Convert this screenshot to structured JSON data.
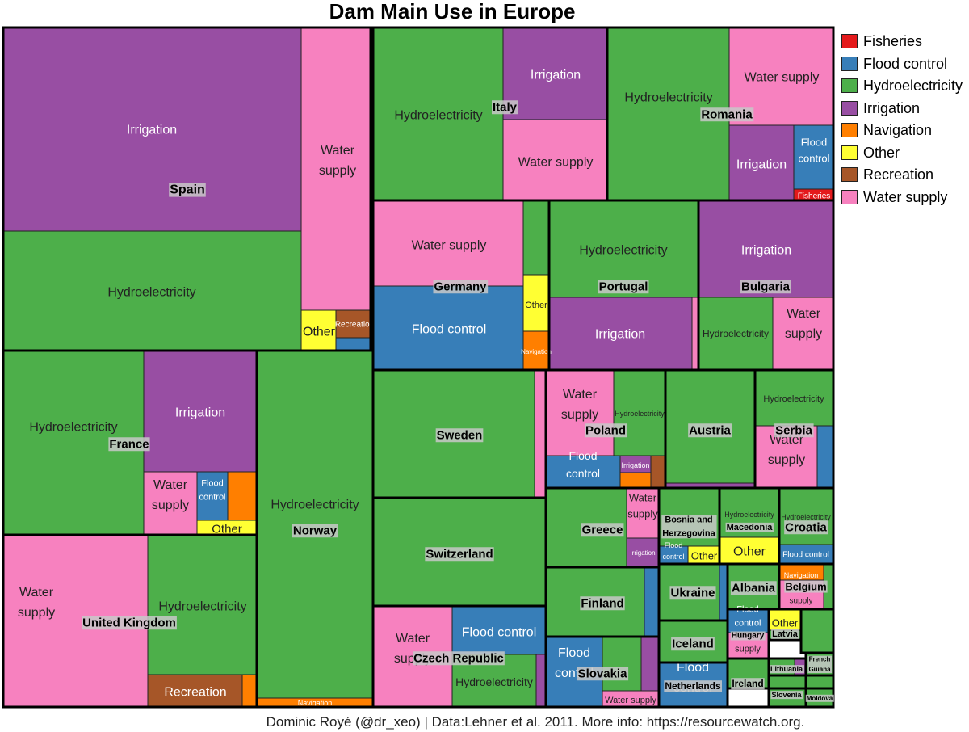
{
  "chart_data": {
    "type": "treemap",
    "title": "Dam Main Use in Europe",
    "caption": "Dominic Royé (@dr_xeo) | Data:Lehner et al. 2011. More info: https://resourcewatch.org.",
    "legend": {
      "position": "right",
      "entries": [
        {
          "label": "Fisheries",
          "color": "#e41a1c"
        },
        {
          "label": "Flood control",
          "color": "#377eb8"
        },
        {
          "label": "Hydroelectricity",
          "color": "#4daf4a"
        },
        {
          "label": "Irrigation",
          "color": "#984ea3"
        },
        {
          "label": "Navigation",
          "color": "#ff7f00"
        },
        {
          "label": "Other",
          "color": "#ffff33"
        },
        {
          "label": "Recreation",
          "color": "#a65628"
        },
        {
          "label": "Water supply",
          "color": "#f781bf"
        }
      ]
    },
    "countries": [
      {
        "name": "Spain",
        "cells": [
          {
            "use": "Irrigation",
            "label": "Irrigation"
          },
          {
            "use": "Hydroelectricity",
            "label": "Hydroelectricity"
          },
          {
            "use": "Water supply",
            "label": "Water supply"
          },
          {
            "use": "Other",
            "label": "Other"
          },
          {
            "use": "Recreation",
            "label": "Recreation"
          },
          {
            "use": "Flood control",
            "label": ""
          }
        ]
      },
      {
        "name": "France",
        "cells": [
          {
            "use": "Hydroelectricity",
            "label": "Hydroelectricity"
          },
          {
            "use": "Irrigation",
            "label": "Irrigation"
          },
          {
            "use": "Water supply",
            "label": "Water supply"
          },
          {
            "use": "Flood control",
            "label": "Flood control"
          },
          {
            "use": "Navigation",
            "label": ""
          },
          {
            "use": "Other",
            "label": "Other"
          }
        ]
      },
      {
        "name": "Norway",
        "cells": [
          {
            "use": "Hydroelectricity",
            "label": "Hydroelectricity"
          },
          {
            "use": "Navigation",
            "label": "Navigation"
          }
        ]
      },
      {
        "name": "United Kingdom",
        "cells": [
          {
            "use": "Water supply",
            "label": "Water supply"
          },
          {
            "use": "Hydroelectricity",
            "label": "Hydroelectricity"
          },
          {
            "use": "Recreation",
            "label": "Recreation"
          },
          {
            "use": "Navigation",
            "label": ""
          }
        ]
      },
      {
        "name": "Italy",
        "cells": [
          {
            "use": "Hydroelectricity",
            "label": "Hydroelectricity"
          },
          {
            "use": "Irrigation",
            "label": "Irrigation"
          },
          {
            "use": "Water supply",
            "label": "Water supply"
          }
        ]
      },
      {
        "name": "Romania",
        "cells": [
          {
            "use": "Hydroelectricity",
            "label": "Hydroelectricity"
          },
          {
            "use": "Water supply",
            "label": "Water supply"
          },
          {
            "use": "Irrigation",
            "label": "Irrigation"
          },
          {
            "use": "Flood control",
            "label": "Flood control"
          },
          {
            "use": "Fisheries",
            "label": "Fisheries"
          }
        ]
      },
      {
        "name": "Germany",
        "cells": [
          {
            "use": "Water supply",
            "label": "Water supply"
          },
          {
            "use": "Hydroelectricity",
            "label": ""
          },
          {
            "use": "Flood control",
            "label": "Flood control"
          },
          {
            "use": "Other",
            "label": "Other"
          },
          {
            "use": "Navigation",
            "label": "Navigation"
          }
        ]
      },
      {
        "name": "Portugal",
        "cells": [
          {
            "use": "Hydroelectricity",
            "label": "Hydroelectricity"
          },
          {
            "use": "Irrigation",
            "label": "Irrigation"
          },
          {
            "use": "Water supply",
            "label": ""
          }
        ]
      },
      {
        "name": "Bulgaria",
        "cells": [
          {
            "use": "Irrigation",
            "label": "Irrigation"
          },
          {
            "use": "Hydroelectricity",
            "label": "Hydroelectricity"
          },
          {
            "use": "Water supply",
            "label": "Water supply"
          }
        ]
      },
      {
        "name": "Sweden",
        "cells": [
          {
            "use": "Hydroelectricity",
            "label": ""
          },
          {
            "use": "Water supply",
            "label": ""
          }
        ]
      },
      {
        "name": "Switzerland",
        "cells": [
          {
            "use": "Hydroelectricity",
            "label": ""
          }
        ]
      },
      {
        "name": "Czech Republic",
        "cells": [
          {
            "use": "Water supply",
            "label": "Water supply"
          },
          {
            "use": "Flood control",
            "label": "Flood control"
          },
          {
            "use": "Hydroelectricity",
            "label": "Hydroelectricity"
          },
          {
            "use": "Irrigation",
            "label": ""
          }
        ]
      },
      {
        "name": "Poland",
        "cells": [
          {
            "use": "Water supply",
            "label": "Water supply"
          },
          {
            "use": "Hydroelectricity",
            "label": "Hydroelectricity"
          },
          {
            "use": "Flood control",
            "label": "Flood control"
          },
          {
            "use": "Irrigation",
            "label": "Irrigation"
          },
          {
            "use": "Navigation",
            "label": ""
          },
          {
            "use": "Recreation",
            "label": ""
          }
        ]
      },
      {
        "name": "Austria",
        "cells": [
          {
            "use": "Hydroelectricity",
            "label": ""
          },
          {
            "use": "Irrigation",
            "label": ""
          }
        ]
      },
      {
        "name": "Serbia",
        "cells": [
          {
            "use": "Hydroelectricity",
            "label": "Hydroelectricity"
          },
          {
            "use": "Water supply",
            "label": "Water supply"
          },
          {
            "use": "Flood control",
            "label": ""
          }
        ]
      },
      {
        "name": "Greece",
        "cells": [
          {
            "use": "Hydroelectricity",
            "label": ""
          },
          {
            "use": "Water supply",
            "label": "Water supply"
          },
          {
            "use": "Irrigation",
            "label": "Irrigation"
          }
        ]
      },
      {
        "name": "Finland",
        "cells": [
          {
            "use": "Hydroelectricity",
            "label": ""
          },
          {
            "use": "Flood control",
            "label": ""
          }
        ]
      },
      {
        "name": "Slovakia",
        "cells": [
          {
            "use": "Flood control",
            "label": "Flood control"
          },
          {
            "use": "Hydroelectricity",
            "label": ""
          },
          {
            "use": "Irrigation",
            "label": ""
          },
          {
            "use": "Water supply",
            "label": "Water supply"
          }
        ]
      },
      {
        "name": "Bosnia and Herzegovina",
        "cells": [
          {
            "use": "Hydroelectricity",
            "label": ""
          },
          {
            "use": "Flood control",
            "label": "Flood control"
          },
          {
            "use": "Other",
            "label": "Other"
          }
        ]
      },
      {
        "name": "Macedonia",
        "cells": [
          {
            "use": "Hydroelectricity",
            "label": "Hydroelectricity"
          },
          {
            "use": "Other",
            "label": "Other"
          }
        ]
      },
      {
        "name": "Croatia",
        "cells": [
          {
            "use": "Hydroelectricity",
            "label": "Hydroelectricity"
          },
          {
            "use": "Flood control",
            "label": "Flood control"
          }
        ]
      },
      {
        "name": "Ukraine",
        "cells": [
          {
            "use": "Hydroelectricity",
            "label": ""
          },
          {
            "use": "Flood control",
            "label": ""
          }
        ]
      },
      {
        "name": "Albania",
        "cells": [
          {
            "use": "Hydroelectricity",
            "label": ""
          }
        ]
      },
      {
        "name": "Belgium",
        "cells": [
          {
            "use": "Navigation",
            "label": "Navigation"
          },
          {
            "use": "Water supply",
            "label": "Water supply"
          },
          {
            "use": "Hydroelectricity",
            "label": ""
          }
        ]
      },
      {
        "name": "Iceland",
        "cells": [
          {
            "use": "Hydroelectricity",
            "label": ""
          }
        ]
      },
      {
        "name": "Hungary",
        "cells": [
          {
            "use": "Flood control",
            "label": "Flood control"
          },
          {
            "use": "Water supply",
            "label": "Water supply"
          }
        ]
      },
      {
        "name": "Latvia",
        "cells": [
          {
            "use": "Other",
            "label": "Other"
          },
          {
            "use": "Hydroelectricity",
            "label": ""
          }
        ]
      },
      {
        "name": "Netherlands",
        "cells": [
          {
            "use": "Flood control",
            "label": "Flood control"
          }
        ]
      },
      {
        "name": "Ireland",
        "cells": [
          {
            "use": "Hydroelectricity",
            "label": ""
          }
        ]
      },
      {
        "name": "Lithuania",
        "cells": [
          {
            "use": "Hydroelectricity",
            "label": ""
          },
          {
            "use": "Irrigation",
            "label": ""
          }
        ]
      },
      {
        "name": "Slovenia",
        "cells": [
          {
            "use": "Hydroelectricity",
            "label": ""
          }
        ]
      },
      {
        "name": "French Guiana",
        "cells": [
          {
            "use": "Hydroelectricity",
            "label": ""
          }
        ]
      },
      {
        "name": "Moldova",
        "cells": [
          {
            "use": "Hydroelectricity",
            "label": ""
          }
        ]
      },
      {
        "name": "",
        "cells": [
          {
            "use": "Hydroelectricity",
            "label": ""
          }
        ]
      },
      {
        "name": "",
        "cells": [
          {
            "use": "Hydroelectricity",
            "label": ""
          }
        ]
      },
      {
        "name": "",
        "cells": [
          {
            "use": "Hydroelectricity",
            "label": ""
          }
        ]
      }
    ]
  }
}
